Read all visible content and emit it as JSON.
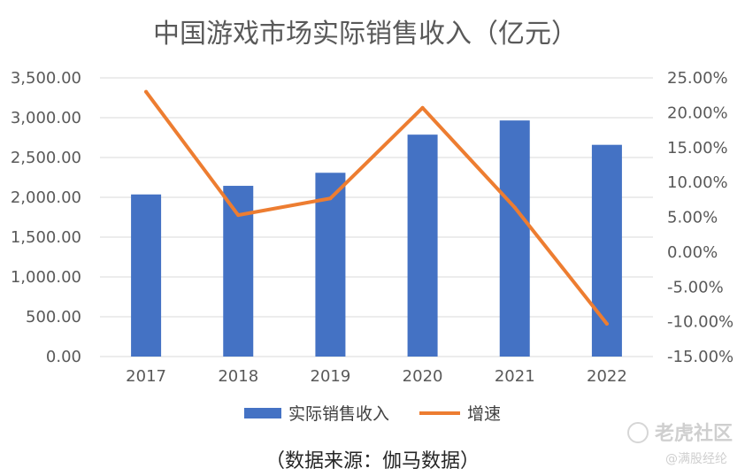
{
  "chart_data": {
    "type": "bar",
    "title": "中国游戏市场实际销售收入（亿元）",
    "categories": [
      "2017",
      "2018",
      "2019",
      "2020",
      "2021",
      "2022"
    ],
    "series": [
      {
        "name": "实际销售收入",
        "type": "bar",
        "axis": "left",
        "color": "#4472C4",
        "values": [
          2036,
          2144,
          2308,
          2787,
          2965,
          2659
        ]
      },
      {
        "name": "增速",
        "type": "line",
        "axis": "right",
        "color": "#ED7D31",
        "values": [
          23.0,
          5.3,
          7.7,
          20.7,
          6.4,
          -10.3
        ]
      }
    ],
    "y_left": {
      "min": 0,
      "max": 3500,
      "step": 500,
      "tick_labels": [
        "0.00",
        "500.00",
        "1,000.00",
        "1,500.00",
        "2,000.00",
        "2,500.00",
        "3,000.00",
        "3,500.00"
      ]
    },
    "y_right": {
      "min": -15,
      "max": 25,
      "step": 5,
      "tick_labels": [
        "-15.00%",
        "-10.00%",
        "-5.00%",
        "0.00%",
        "5.00%",
        "10.00%",
        "15.00%",
        "20.00%",
        "25.00%"
      ]
    },
    "grid": true,
    "legend": "bottom"
  },
  "source_note": "（数据来源：伽马数据）",
  "watermark": {
    "main": "老虎社区",
    "sub": "@满股经纶"
  }
}
